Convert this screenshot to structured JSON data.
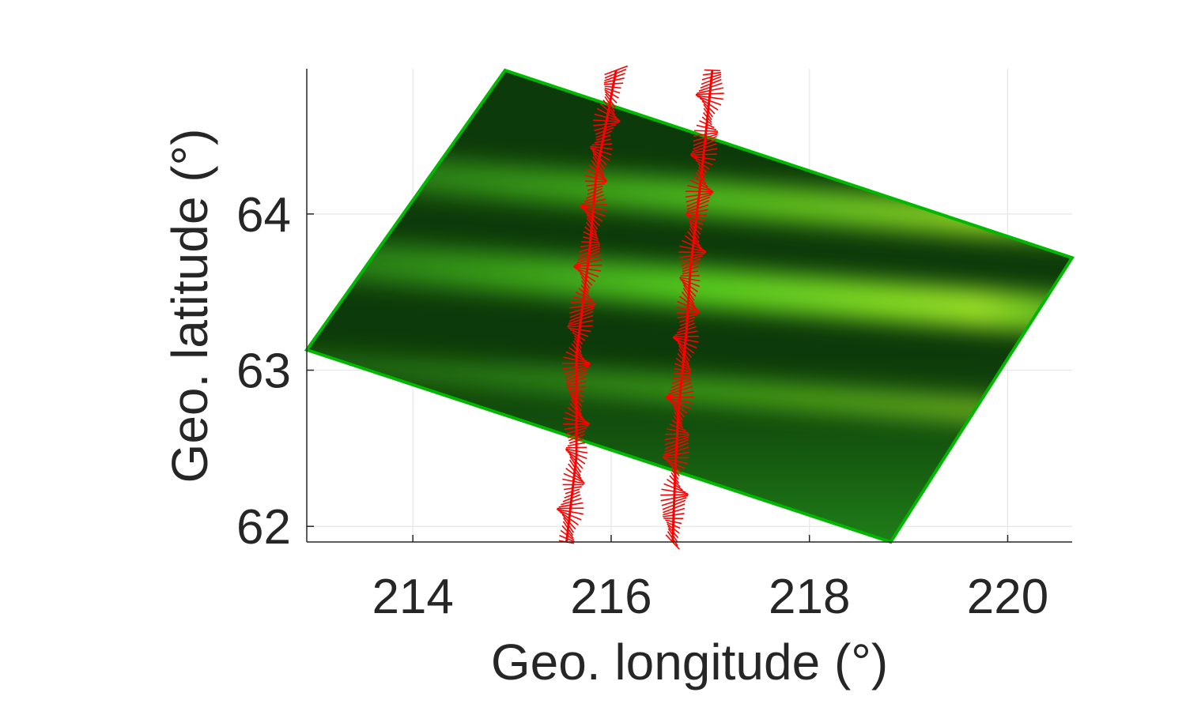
{
  "chart_data": {
    "type": "heatmap",
    "xlabel": "Geo. longitude (°)",
    "ylabel": "Geo. latitude (°)",
    "xlim": [
      212.93,
      220.65
    ],
    "ylim": [
      61.9,
      64.93
    ],
    "xticks": [
      214,
      216,
      218,
      220
    ],
    "yticks": [
      62,
      63,
      64
    ],
    "grid": true,
    "colors": {
      "footprint_border": "#00b800",
      "vectors": "#ff0000",
      "axis": "#262626",
      "grid": "#e6e6e6"
    },
    "footprint": {
      "corners": [
        {
          "lon": 214.93,
          "lat": 64.92
        },
        {
          "lon": 220.65,
          "lat": 63.72
        },
        {
          "lon": 218.82,
          "lat": 61.9
        },
        {
          "lon": 212.93,
          "lat": 63.13
        }
      ],
      "auroral_bands": [
        {
          "lat_west": 64.3,
          "lat_east": 63.92,
          "intensity": 0.75
        },
        {
          "lat_west": 63.72,
          "lat_east": 63.35,
          "intensity": 0.95
        },
        {
          "lat_west": 63.05,
          "lat_east": 62.7,
          "intensity": 0.35
        }
      ]
    },
    "vector_tracks": [
      {
        "points": [
          {
            "lon": 215.55,
            "lat": 61.9
          },
          {
            "lon": 215.65,
            "lat": 62.45
          },
          {
            "lon": 215.65,
            "lat": 63.1
          },
          {
            "lon": 215.78,
            "lat": 63.75
          },
          {
            "lon": 215.85,
            "lat": 64.25
          },
          {
            "lon": 216.05,
            "lat": 64.92
          }
        ]
      },
      {
        "points": [
          {
            "lon": 216.62,
            "lat": 61.9
          },
          {
            "lon": 216.65,
            "lat": 62.4
          },
          {
            "lon": 216.68,
            "lat": 62.75
          },
          {
            "lon": 216.76,
            "lat": 63.25
          },
          {
            "lon": 216.8,
            "lat": 63.65
          },
          {
            "lon": 216.92,
            "lat": 64.3
          },
          {
            "lon": 217.02,
            "lat": 64.92
          }
        ]
      }
    ]
  }
}
